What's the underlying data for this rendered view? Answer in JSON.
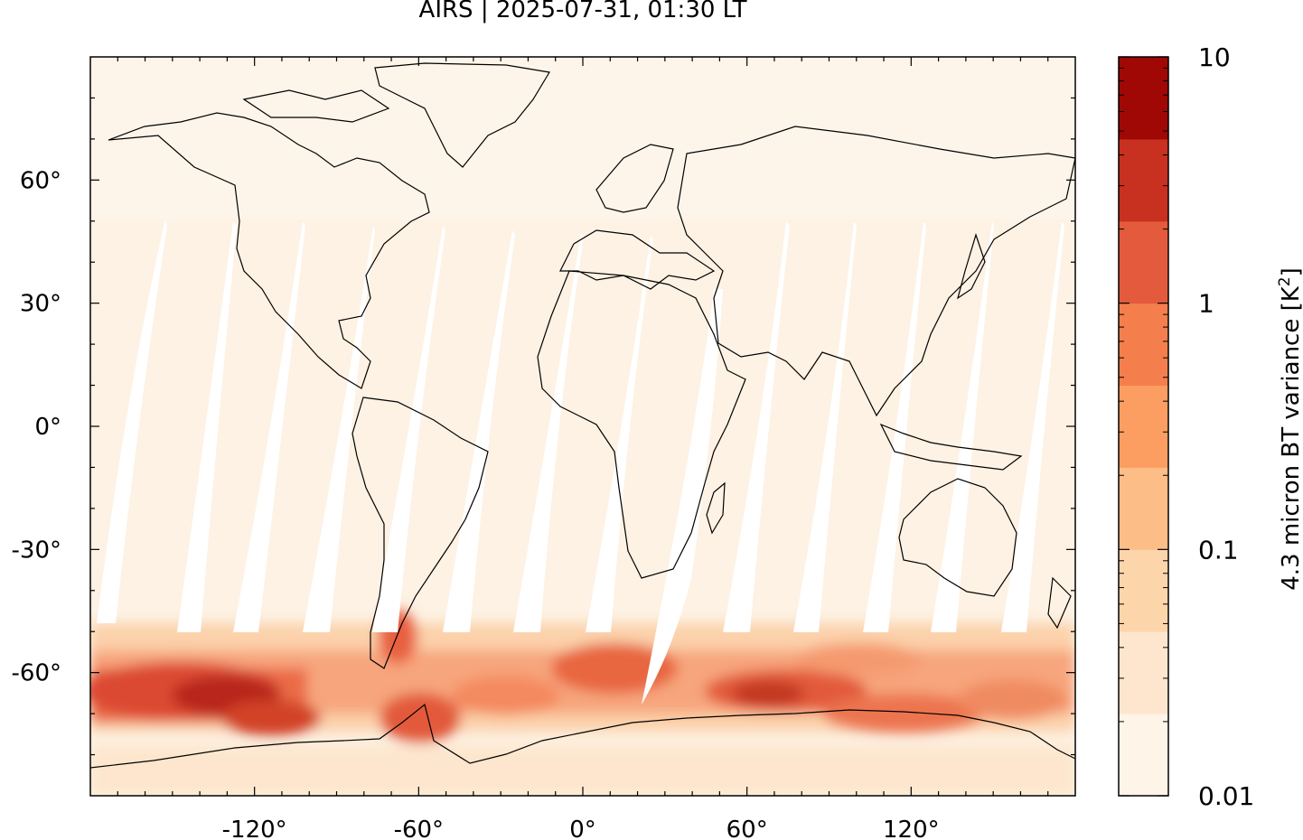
{
  "title": "AIRS | 2025-07-31, 01:30 LT",
  "map": {
    "projection": "equirectangular",
    "lon_range": [
      -180,
      180
    ],
    "lat_range": [
      -90,
      90
    ],
    "x_ticks": [
      "-120°",
      "-60°",
      "0°",
      "60°",
      "120°"
    ],
    "y_ticks": [
      "60°",
      "30°",
      "0°",
      "-30°",
      "-60°"
    ],
    "features": [
      "coastlines",
      "orbit-swath-gaps"
    ]
  },
  "colorbar": {
    "label_main": "4.3 micron BT variance [K",
    "label_sup": "2",
    "label_end": "]",
    "scale": "log",
    "range": [
      0.01,
      10
    ],
    "tick_labels": [
      "10",
      "1",
      "0.1",
      "0.01"
    ],
    "colors": [
      "#fef4e8",
      "#fde6cd",
      "#fdd5ab",
      "#fdbd87",
      "#fc9e62",
      "#f47f4d",
      "#e45a3c",
      "#c8301f",
      "#a00806"
    ]
  },
  "colors": {
    "background_field": "#fdf2e4",
    "high_variance": "#e25a3a",
    "peak_variance": "#a00806",
    "coastline": "#000000"
  }
}
